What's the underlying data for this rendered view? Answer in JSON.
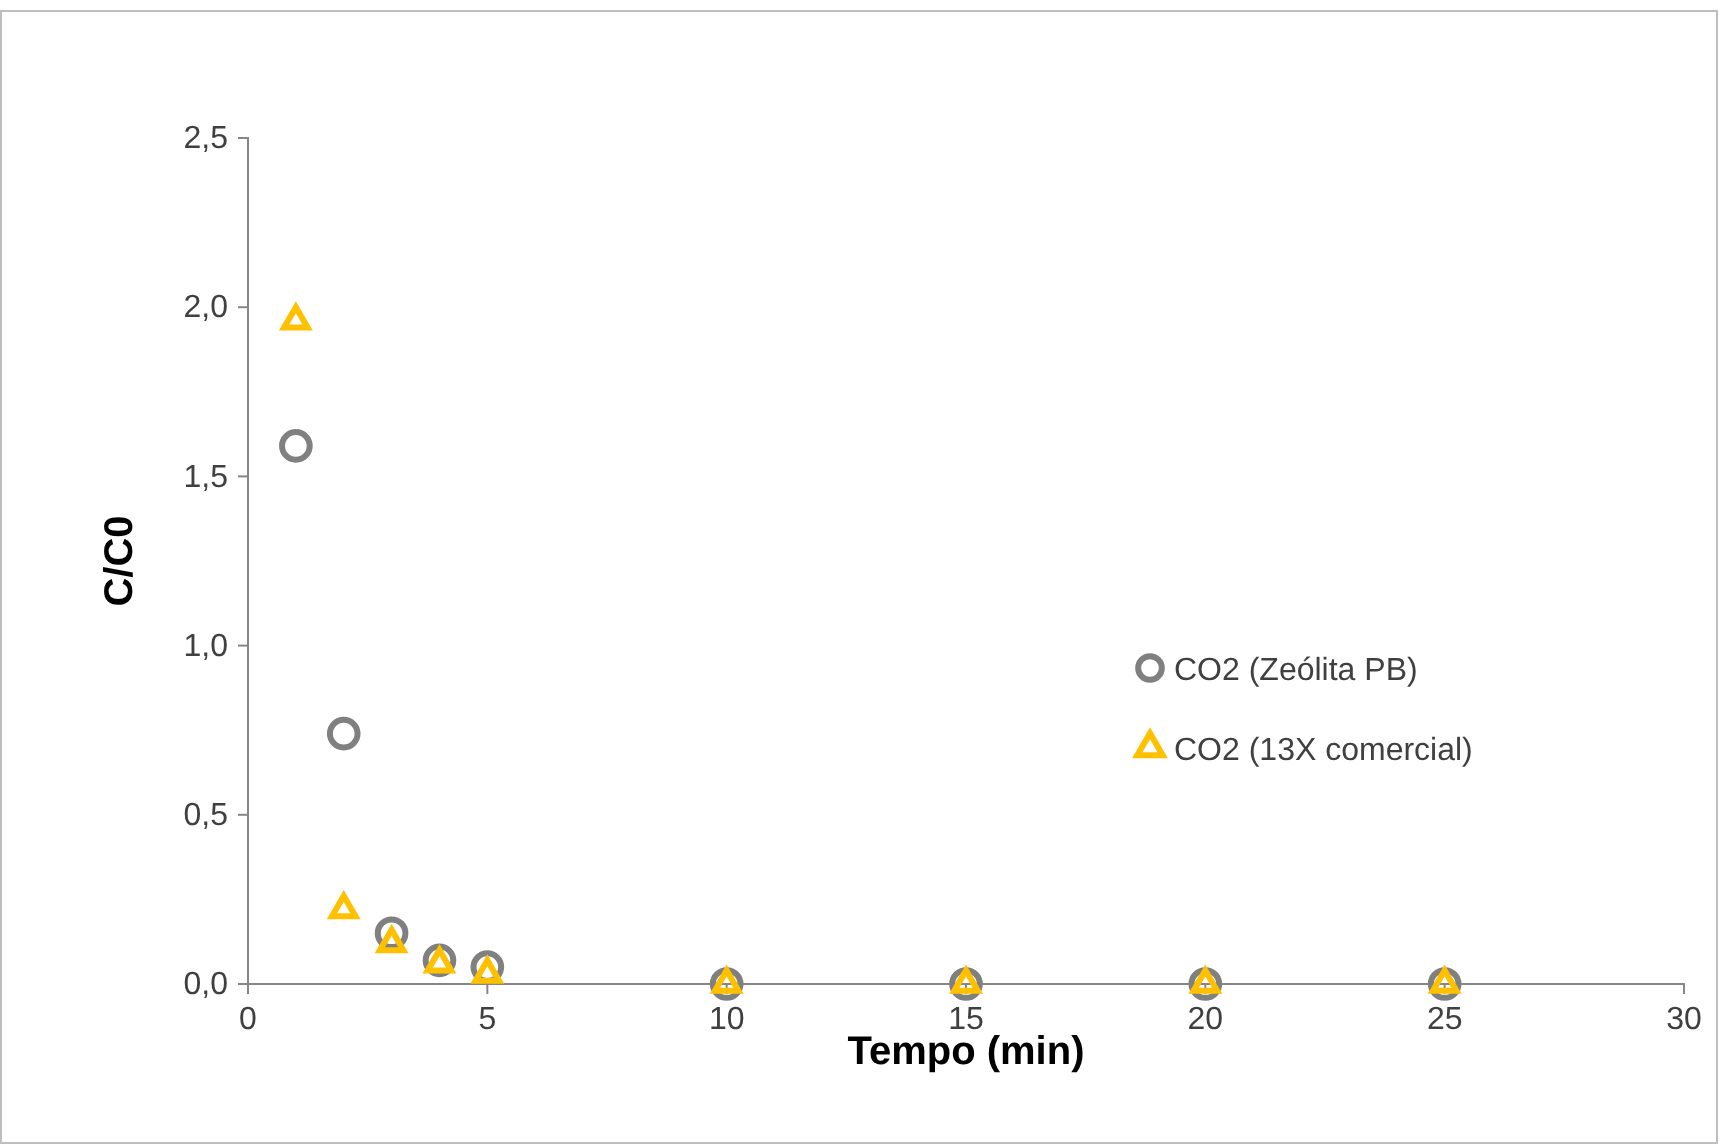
{
  "chart_data": {
    "type": "scatter",
    "xlabel": "Tempo (min)",
    "ylabel": "C/C0",
    "xlim": [
      0,
      30
    ],
    "xticks": [
      0,
      5,
      10,
      15,
      20,
      25,
      30
    ],
    "ylim": [
      0,
      2.5
    ],
    "yticks": [
      {
        "value": 0,
        "label": "0,0"
      },
      {
        "value": 0.5,
        "label": "0,5"
      },
      {
        "value": 1,
        "label": "1,0"
      },
      {
        "value": 1.5,
        "label": "1,5"
      },
      {
        "value": 2,
        "label": "2,0"
      },
      {
        "value": 2.5,
        "label": "2,5"
      }
    ],
    "grid": false,
    "legend": "right",
    "series": [
      {
        "name": "CO2 (Zeólita PB)",
        "color": "#808080",
        "marker": "circle",
        "x": [
          1,
          2,
          3,
          4,
          5,
          10,
          15,
          20,
          25
        ],
        "values": [
          1.59,
          0.74,
          0.15,
          0.07,
          0.05,
          0,
          0,
          0,
          0
        ]
      },
      {
        "name": "CO2 (13X comercial)",
        "color": "#ffc000",
        "marker": "triangle",
        "x": [
          1,
          2,
          3,
          4,
          5,
          10,
          15,
          20,
          25
        ],
        "values": [
          1.96,
          0.22,
          0.12,
          0.06,
          0.03,
          0,
          0,
          0,
          0
        ]
      }
    ]
  }
}
